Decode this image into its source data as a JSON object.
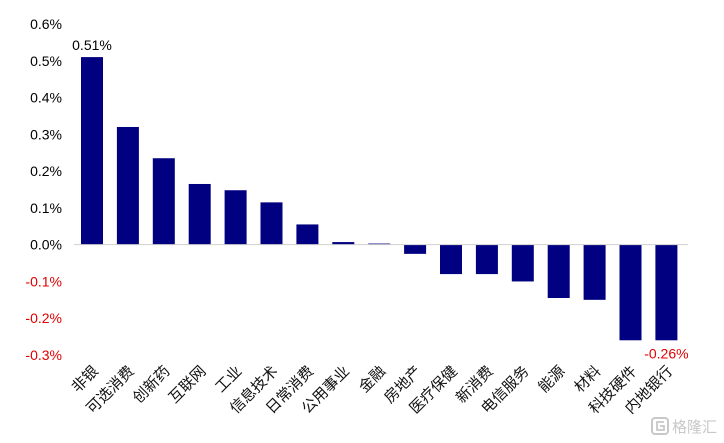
{
  "chart_data": {
    "type": "bar",
    "categories": [
      "非银",
      "可选消费",
      "创新药",
      "互联网",
      "工业",
      "信息技术",
      "日常消费",
      "公用事业",
      "金融",
      "房地产",
      "医疗保健",
      "新消费",
      "电信服务",
      "能源",
      "材料",
      "科技硬件",
      "内地银行"
    ],
    "values": [
      0.51,
      0.32,
      0.235,
      0.165,
      0.148,
      0.115,
      0.055,
      0.007,
      0.003,
      -0.025,
      -0.08,
      -0.08,
      -0.1,
      -0.145,
      -0.15,
      -0.26,
      -0.26
    ],
    "yticks": [
      "0.6%",
      "0.5%",
      "0.4%",
      "0.3%",
      "0.2%",
      "0.1%",
      "0.0%",
      "-0.1%",
      "-0.2%",
      "-0.3%"
    ],
    "ylim": [
      -0.3,
      0.6
    ],
    "data_labels": [
      {
        "index": 0,
        "text": "0.51%",
        "color": "#000000"
      },
      {
        "index": 16,
        "text": "-0.26%",
        "color": "#e00000"
      }
    ],
    "grid": false,
    "colors": {
      "bar": "#000080",
      "positive_tick": "#000000",
      "negative_tick": "#e00000",
      "axis": "#d0d0d0"
    }
  },
  "watermark": {
    "text": "格隆汇"
  }
}
